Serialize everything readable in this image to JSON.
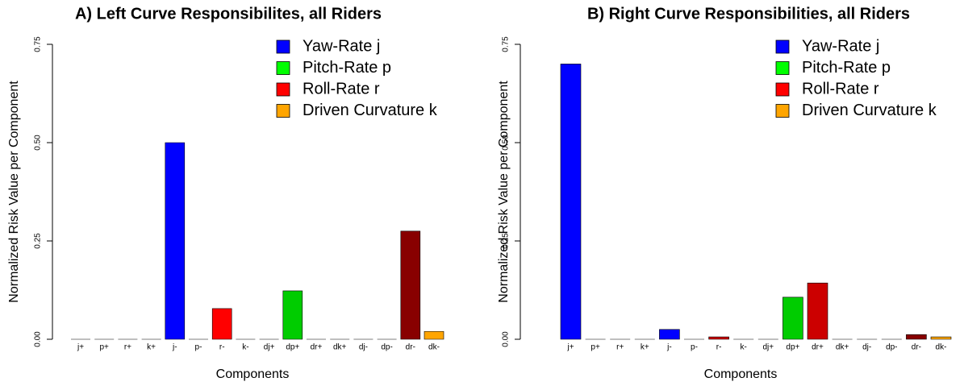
{
  "chart_data": [
    {
      "type": "bar",
      "title": "A) Left Curve Responsibilites, all Riders",
      "xlabel": "Components",
      "ylabel": "Normalized Risk Value per Component",
      "categories": [
        "j+",
        "p+",
        "r+",
        "k+",
        "j-",
        "p-",
        "r-",
        "k-",
        "dj+",
        "dp+",
        "dr+",
        "dk+",
        "dj-",
        "dp-",
        "dr-",
        "dk-"
      ],
      "values": [
        0,
        0,
        0,
        0,
        0.5,
        0,
        0.078,
        0,
        0,
        0.123,
        0,
        0,
        0,
        0,
        0.275,
        0.02
      ],
      "colors": [
        "#0000ff",
        "#00ff00",
        "#ff0000",
        "#ffa500",
        "#0000ff",
        "#00ff00",
        "#ff0000",
        "#ffa500",
        "#0000ff",
        "#00cc00",
        "#cc0000",
        "#ffa500",
        "#0000ff",
        "#00cc00",
        "#880000",
        "#ffa500"
      ],
      "ylim": [
        0,
        0.75
      ],
      "yticks": [
        {
          "value": 0,
          "label": "0.00"
        },
        {
          "value": 0.25,
          "label": "0.25"
        },
        {
          "value": 0.5,
          "label": "0.50"
        },
        {
          "value": 0.75,
          "label": "0.75"
        }
      ],
      "legend": [
        {
          "name": "Yaw-Rate j",
          "color": "#0000ff"
        },
        {
          "name": "Pitch-Rate p",
          "color": "#00ff00"
        },
        {
          "name": "Roll-Rate r",
          "color": "#ff0000"
        },
        {
          "name": "Driven Curvature k",
          "color": "#ffa500"
        }
      ]
    },
    {
      "type": "bar",
      "title": "B) Right Curve Responsibilities, all Riders",
      "xlabel": "Components",
      "ylabel": "Normalized Risk Value per Component",
      "categories": [
        "j+",
        "p+",
        "r+",
        "k+",
        "j-",
        "p-",
        "r-",
        "k-",
        "dj+",
        "dp+",
        "dr+",
        "dk+",
        "dj-",
        "dp-",
        "dr-",
        "dk-"
      ],
      "values": [
        0.7,
        0,
        0,
        0,
        0.025,
        0,
        0.006,
        0,
        0,
        0.107,
        0.143,
        0,
        0,
        0,
        0.012,
        0.006
      ],
      "colors": [
        "#0000ff",
        "#00ff00",
        "#cc0000",
        "#ffa500",
        "#0000ff",
        "#00ff00",
        "#cc0000",
        "#ffa500",
        "#0000ff",
        "#00cc00",
        "#cc0000",
        "#ffa500",
        "#0000ff",
        "#00cc00",
        "#880000",
        "#ffa500"
      ],
      "ylim": [
        0,
        0.75
      ],
      "yticks": [
        {
          "value": 0,
          "label": "0.00"
        },
        {
          "value": 0.25,
          "label": "0.25"
        },
        {
          "value": 0.5,
          "label": "0.50"
        },
        {
          "value": 0.75,
          "label": "0.75"
        }
      ],
      "legend": [
        {
          "name": "Yaw-Rate j",
          "color": "#0000ff"
        },
        {
          "name": "Pitch-Rate p",
          "color": "#00ff00"
        },
        {
          "name": "Roll-Rate r",
          "color": "#ff0000"
        },
        {
          "name": "Driven Curvature k",
          "color": "#ffa500"
        }
      ]
    }
  ]
}
